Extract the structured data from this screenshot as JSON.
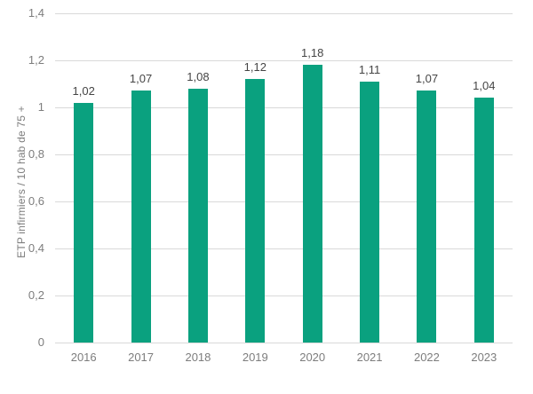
{
  "chart_data": {
    "type": "bar",
    "title": "",
    "xlabel": "",
    "ylabel": "ETP infirmiers / 10 hab de 75 +",
    "categories": [
      "2016",
      "2017",
      "2018",
      "2019",
      "2020",
      "2021",
      "2022",
      "2023"
    ],
    "values": [
      1.02,
      1.07,
      1.08,
      1.12,
      1.18,
      1.11,
      1.07,
      1.04
    ],
    "value_labels": [
      "1,02",
      "1,07",
      "1,08",
      "1,12",
      "1,18",
      "1,11",
      "1,07",
      "1,04"
    ],
    "ylim": [
      0,
      1.4
    ],
    "ytick_values": [
      0,
      0.2,
      0.4,
      0.6,
      0.8,
      1,
      1.2,
      1.4
    ],
    "ytick_labels": [
      "0",
      "0,2",
      "0,4",
      "0,6",
      "0,8",
      "1",
      "1,2",
      "1,4"
    ],
    "grid": true,
    "legend": false,
    "colors": {
      "bar": "#0aa17f",
      "gridline": "#d9d9d9",
      "axis_text": "#7d7d7d",
      "data_label_text": "#454545",
      "background": "#ffffff"
    }
  }
}
